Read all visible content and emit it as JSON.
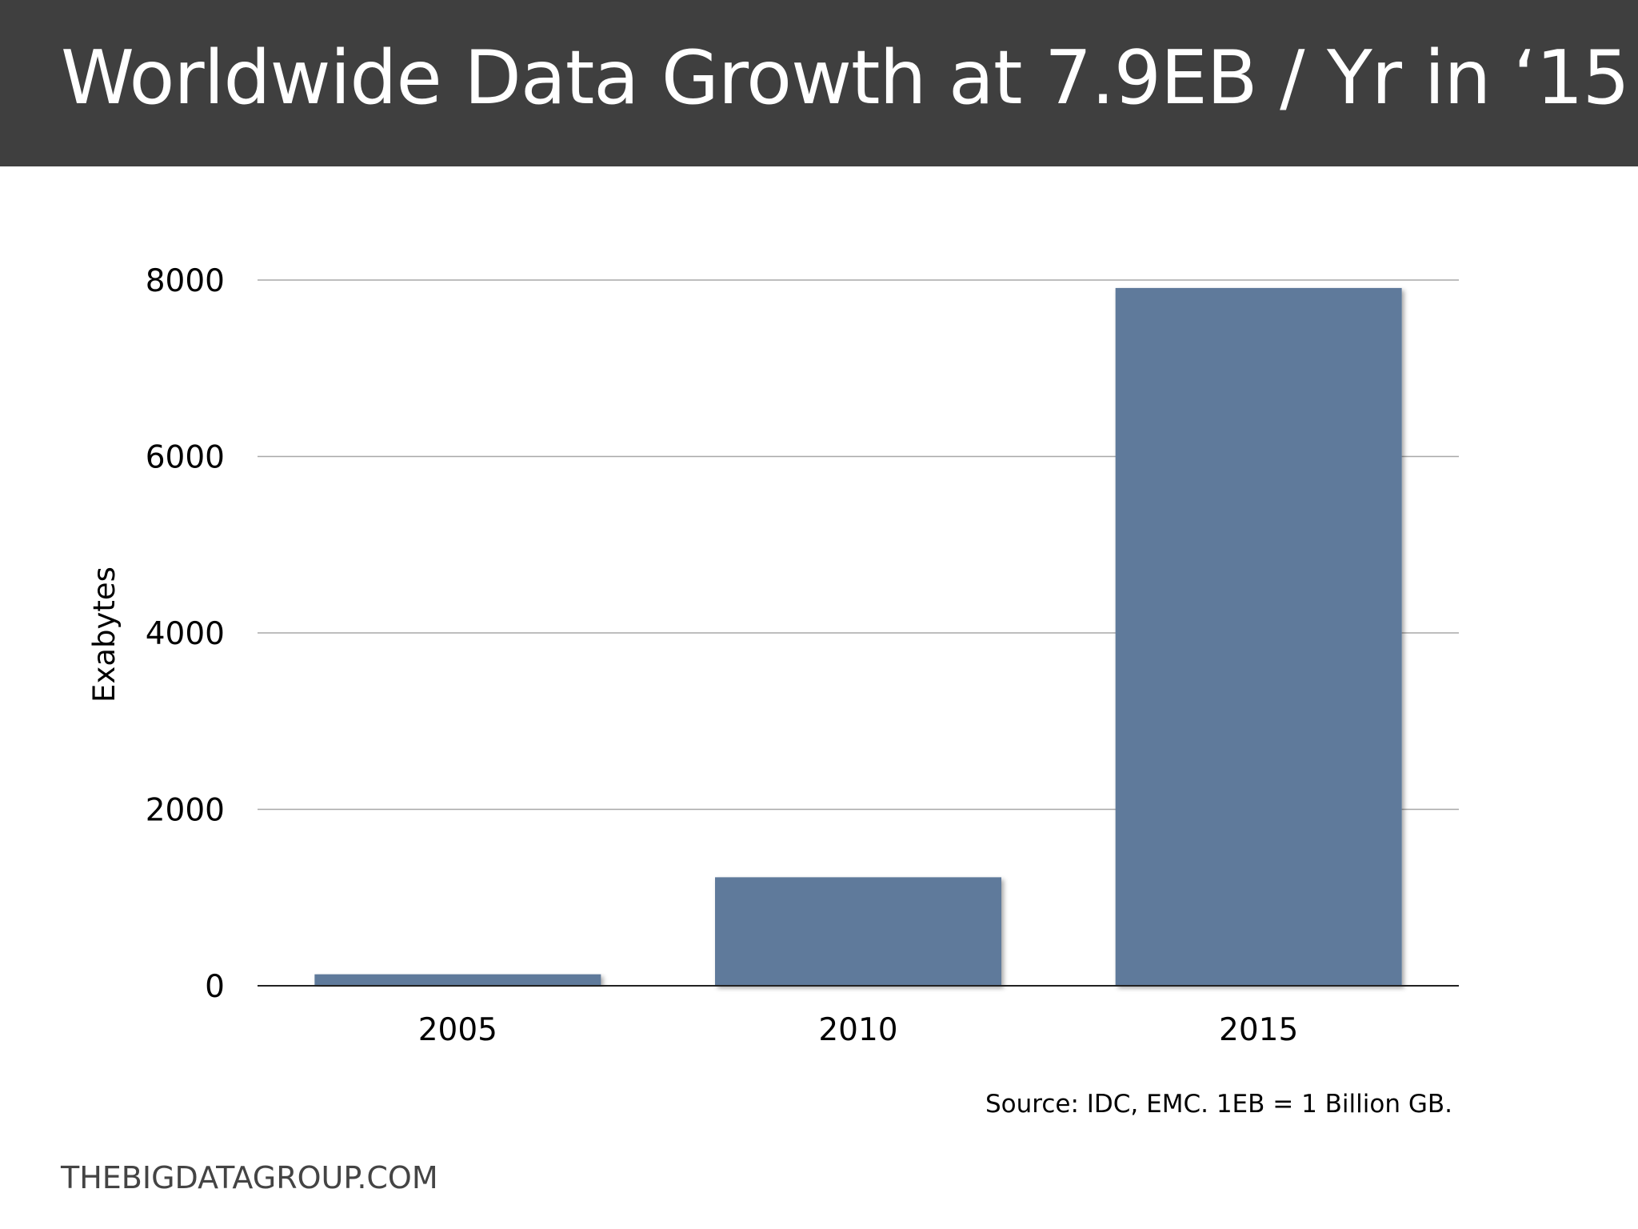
{
  "header": {
    "title": "Worldwide Data Growth at 7.9EB / Yr in ‘15"
  },
  "chart_data": {
    "type": "bar",
    "categories": [
      "2005",
      "2010",
      "2015"
    ],
    "values": [
      130,
      1230,
      7910
    ],
    "title": "",
    "xlabel": "",
    "ylabel": "Exabytes",
    "ylim": [
      0,
      8000
    ],
    "yticks": [
      "0",
      "2000",
      "4000",
      "6000",
      "8000"
    ],
    "grid": true,
    "legend": "none",
    "bar_color": "#5f7a9b"
  },
  "source_note": "Source: IDC, EMC. 1EB = 1 Billion GB.",
  "footer": {
    "site": "THEBIGDATAGROUP.COM"
  },
  "colors": {
    "header_bg": "#3f3f3f",
    "bar": "#5f7a9b",
    "gridline": "#a8a8a8"
  }
}
